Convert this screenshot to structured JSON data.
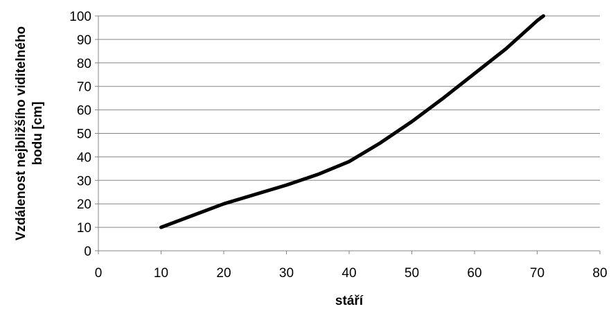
{
  "chart_data": {
    "type": "line",
    "title": "",
    "xlabel": "stáří",
    "ylabel_lines": [
      "Vzdálenost nejbližšího viditelného",
      "bodu [cm]"
    ],
    "xlim": [
      0,
      80
    ],
    "ylim": [
      0,
      100
    ],
    "x_ticks": [
      0,
      10,
      20,
      30,
      40,
      50,
      60,
      70,
      80
    ],
    "y_ticks": [
      0,
      10,
      20,
      30,
      40,
      50,
      60,
      70,
      80,
      90,
      100
    ],
    "grid": {
      "horizontal": true,
      "vertical": false
    },
    "legend": "none",
    "series": [
      {
        "color": "#000000",
        "x": [
          10,
          15,
          20,
          25,
          30,
          35,
          40,
          45,
          50,
          55,
          60,
          65,
          70,
          71
        ],
        "y": [
          10,
          15,
          20,
          24,
          28,
          32.5,
          38,
          46,
          55,
          65,
          75.5,
          86,
          98,
          100
        ]
      }
    ]
  }
}
